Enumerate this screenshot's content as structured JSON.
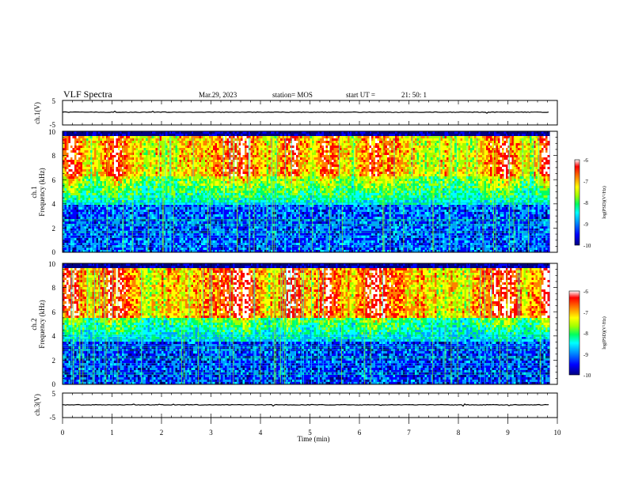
{
  "header": {
    "title": "VLF Spectra",
    "date": "Mar.29, 2023",
    "station": "station= MOS",
    "start_label": "start  UT  =",
    "start_time": "21: 50: 1"
  },
  "chart_data": [
    {
      "id": "ch1-waveform",
      "type": "line",
      "ylabel": "ch.1(V)",
      "ylim": [
        -5,
        5
      ],
      "yticks": [
        "5",
        "-5"
      ],
      "xlim": [
        0,
        10
      ],
      "description_level": -0.1
    },
    {
      "id": "ch1-spectrogram",
      "type": "heatmap",
      "ylabel_channel": "ch.1",
      "ylabel": "Frequency (kHz)",
      "ylim": [
        0,
        10
      ],
      "yticks": [
        "0",
        "2",
        "4",
        "6",
        "8",
        "10"
      ],
      "xlim": [
        0,
        10
      ],
      "colorbar": {
        "label": "log(PSD)(V²/Hz)",
        "range": [
          -10,
          -6
        ],
        "ticks": [
          "-6",
          "-7",
          "-8",
          "-9",
          "-10"
        ]
      }
    },
    {
      "id": "ch2-spectrogram",
      "type": "heatmap",
      "ylabel_channel": "ch.2",
      "ylabel": "Frequency (kHz)",
      "ylim": [
        0,
        10
      ],
      "yticks": [
        "0",
        "2",
        "4",
        "6",
        "8",
        "10"
      ],
      "xlim": [
        0,
        10
      ],
      "colorbar": {
        "label": "log(PSD)(V²/Hz)",
        "range": [
          -10,
          -6
        ],
        "ticks": [
          "-6",
          "-7",
          "-8",
          "-9",
          "-10"
        ]
      }
    },
    {
      "id": "ch3-waveform",
      "type": "line",
      "ylabel": "ch.3(V)",
      "ylim": [
        -5,
        5
      ],
      "yticks": [
        "5",
        "-5"
      ],
      "xlim": [
        0,
        10
      ],
      "description_level": -0.1
    }
  ],
  "xaxis": {
    "label": "Time  (min)",
    "range": [
      0,
      10
    ],
    "data_end": 9.85,
    "ticks": [
      "0",
      "1",
      "2",
      "3",
      "4",
      "5",
      "6",
      "7",
      "8",
      "9",
      "10"
    ]
  },
  "colors": {
    "cmap": [
      "#000080",
      "#0000ff",
      "#00a0ff",
      "#00ffff",
      "#00ff60",
      "#a0ff00",
      "#ffff00",
      "#ff8000",
      "#ff0000",
      "#ffffff"
    ]
  }
}
